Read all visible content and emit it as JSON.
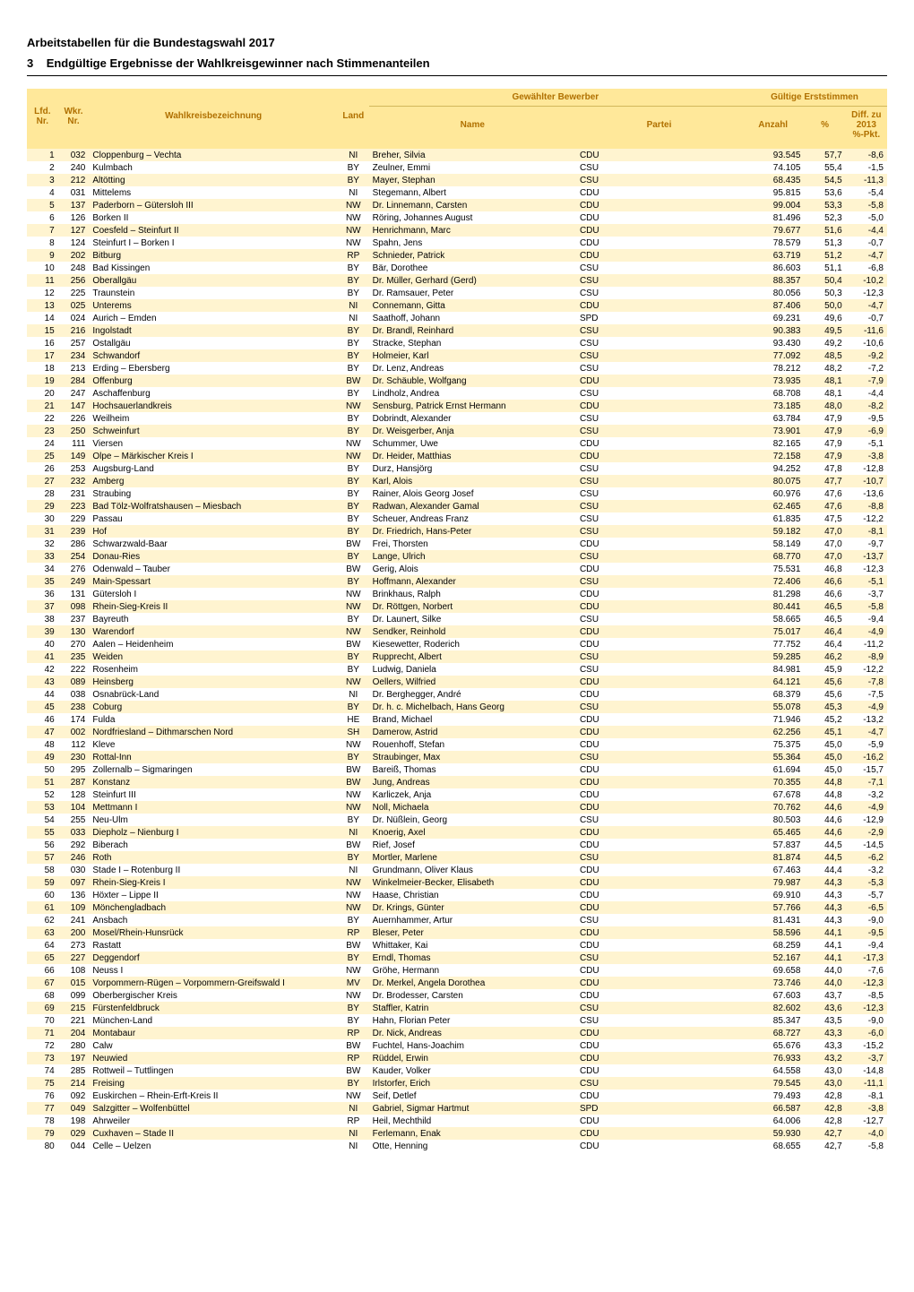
{
  "header": {
    "title1": "Arbeitstabellen für die Bundestagswahl 2017",
    "title2_num": "3",
    "title2_txt": "Endgültige Ergebnisse der Wahlkreisgewinner nach Stimmenanteilen"
  },
  "columns": {
    "lfd": "Lfd.\nNr.",
    "wkr": "Wkr.\nNr.",
    "bez": "Wahlkreisbezeichnung",
    "land": "Land",
    "gew": "Gewählter Bewerber",
    "name": "Name",
    "partei": "Partei",
    "erst": "Gültige Erststimmen",
    "anzahl": "Anzahl",
    "pct": "%",
    "diff": "Diff. zu\n2013\n%-Pkt."
  },
  "palette": {
    "header_bg": "#ffe89a",
    "header_fg": "#b07000",
    "row_odd": "#fff4d0",
    "row_even": "#ffffff"
  },
  "rows": [
    {
      "lfd": 1,
      "wkr": "032",
      "bez": "Cloppenburg – Vechta",
      "land": "NI",
      "name": "Breher, Silvia",
      "partei": "CDU",
      "anz": "93.545",
      "pct": "57,7",
      "diff": "-8,6"
    },
    {
      "lfd": 2,
      "wkr": "240",
      "bez": "Kulmbach",
      "land": "BY",
      "name": "Zeulner, Emmi",
      "partei": "CSU",
      "anz": "74.105",
      "pct": "55,4",
      "diff": "-1,5"
    },
    {
      "lfd": 3,
      "wkr": "212",
      "bez": "Altötting",
      "land": "BY",
      "name": "Mayer, Stephan",
      "partei": "CSU",
      "anz": "68.435",
      "pct": "54,5",
      "diff": "-11,3"
    },
    {
      "lfd": 4,
      "wkr": "031",
      "bez": "Mittelems",
      "land": "NI",
      "name": "Stegemann, Albert",
      "partei": "CDU",
      "anz": "95.815",
      "pct": "53,6",
      "diff": "-5,4"
    },
    {
      "lfd": 5,
      "wkr": "137",
      "bez": "Paderborn – Gütersloh III",
      "land": "NW",
      "name": "Dr. Linnemann, Carsten",
      "partei": "CDU",
      "anz": "99.004",
      "pct": "53,3",
      "diff": "-5,8"
    },
    {
      "lfd": 6,
      "wkr": "126",
      "bez": "Borken II",
      "land": "NW",
      "name": "Röring, Johannes August",
      "partei": "CDU",
      "anz": "81.496",
      "pct": "52,3",
      "diff": "-5,0"
    },
    {
      "lfd": 7,
      "wkr": "127",
      "bez": "Coesfeld – Steinfurt II",
      "land": "NW",
      "name": "Henrichmann, Marc",
      "partei": "CDU",
      "anz": "79.677",
      "pct": "51,6",
      "diff": "-4,4"
    },
    {
      "lfd": 8,
      "wkr": "124",
      "bez": "Steinfurt I – Borken I",
      "land": "NW",
      "name": "Spahn, Jens",
      "partei": "CDU",
      "anz": "78.579",
      "pct": "51,3",
      "diff": "-0,7"
    },
    {
      "lfd": 9,
      "wkr": "202",
      "bez": "Bitburg",
      "land": "RP",
      "name": "Schnieder, Patrick",
      "partei": "CDU",
      "anz": "63.719",
      "pct": "51,2",
      "diff": "-4,7"
    },
    {
      "lfd": 10,
      "wkr": "248",
      "bez": "Bad Kissingen",
      "land": "BY",
      "name": "Bär, Dorothee",
      "partei": "CSU",
      "anz": "86.603",
      "pct": "51,1",
      "diff": "-6,8"
    },
    {
      "lfd": 11,
      "wkr": "256",
      "bez": "Oberallgäu",
      "land": "BY",
      "name": "Dr. Müller, Gerhard (Gerd)",
      "partei": "CSU",
      "anz": "88.357",
      "pct": "50,4",
      "diff": "-10,2"
    },
    {
      "lfd": 12,
      "wkr": "225",
      "bez": "Traunstein",
      "land": "BY",
      "name": "Dr. Ramsauer, Peter",
      "partei": "CSU",
      "anz": "80.056",
      "pct": "50,3",
      "diff": "-12,3"
    },
    {
      "lfd": 13,
      "wkr": "025",
      "bez": "Unterems",
      "land": "NI",
      "name": "Connemann, Gitta",
      "partei": "CDU",
      "anz": "87.406",
      "pct": "50,0",
      "diff": "-4,7"
    },
    {
      "lfd": 14,
      "wkr": "024",
      "bez": "Aurich – Emden",
      "land": "NI",
      "name": "Saathoff, Johann",
      "partei": "SPD",
      "anz": "69.231",
      "pct": "49,6",
      "diff": "-0,7"
    },
    {
      "lfd": 15,
      "wkr": "216",
      "bez": "Ingolstadt",
      "land": "BY",
      "name": "Dr. Brandl, Reinhard",
      "partei": "CSU",
      "anz": "90.383",
      "pct": "49,5",
      "diff": "-11,6"
    },
    {
      "lfd": 16,
      "wkr": "257",
      "bez": "Ostallgäu",
      "land": "BY",
      "name": "Stracke, Stephan",
      "partei": "CSU",
      "anz": "93.430",
      "pct": "49,2",
      "diff": "-10,6"
    },
    {
      "lfd": 17,
      "wkr": "234",
      "bez": "Schwandorf",
      "land": "BY",
      "name": "Holmeier, Karl",
      "partei": "CSU",
      "anz": "77.092",
      "pct": "48,5",
      "diff": "-9,2"
    },
    {
      "lfd": 18,
      "wkr": "213",
      "bez": "Erding – Ebersberg",
      "land": "BY",
      "name": "Dr. Lenz, Andreas",
      "partei": "CSU",
      "anz": "78.212",
      "pct": "48,2",
      "diff": "-7,2"
    },
    {
      "lfd": 19,
      "wkr": "284",
      "bez": "Offenburg",
      "land": "BW",
      "name": "Dr. Schäuble, Wolfgang",
      "partei": "CDU",
      "anz": "73.935",
      "pct": "48,1",
      "diff": "-7,9"
    },
    {
      "lfd": 20,
      "wkr": "247",
      "bez": "Aschaffenburg",
      "land": "BY",
      "name": "Lindholz, Andrea",
      "partei": "CSU",
      "anz": "68.708",
      "pct": "48,1",
      "diff": "-4,4"
    },
    {
      "lfd": 21,
      "wkr": "147",
      "bez": "Hochsauerlandkreis",
      "land": "NW",
      "name": "Sensburg, Patrick Ernst Hermann",
      "partei": "CDU",
      "anz": "73.185",
      "pct": "48,0",
      "diff": "-8,2"
    },
    {
      "lfd": 22,
      "wkr": "226",
      "bez": "Weilheim",
      "land": "BY",
      "name": "Dobrindt, Alexander",
      "partei": "CSU",
      "anz": "63.784",
      "pct": "47,9",
      "diff": "-9,5"
    },
    {
      "lfd": 23,
      "wkr": "250",
      "bez": "Schweinfurt",
      "land": "BY",
      "name": "Dr. Weisgerber, Anja",
      "partei": "CSU",
      "anz": "73.901",
      "pct": "47,9",
      "diff": "-6,9"
    },
    {
      "lfd": 24,
      "wkr": "111",
      "bez": "Viersen",
      "land": "NW",
      "name": "Schummer, Uwe",
      "partei": "CDU",
      "anz": "82.165",
      "pct": "47,9",
      "diff": "-5,1"
    },
    {
      "lfd": 25,
      "wkr": "149",
      "bez": "Olpe – Märkischer Kreis I",
      "land": "NW",
      "name": "Dr. Heider, Matthias",
      "partei": "CDU",
      "anz": "72.158",
      "pct": "47,9",
      "diff": "-3,8"
    },
    {
      "lfd": 26,
      "wkr": "253",
      "bez": "Augsburg-Land",
      "land": "BY",
      "name": "Durz, Hansjörg",
      "partei": "CSU",
      "anz": "94.252",
      "pct": "47,8",
      "diff": "-12,8"
    },
    {
      "lfd": 27,
      "wkr": "232",
      "bez": "Amberg",
      "land": "BY",
      "name": "Karl, Alois",
      "partei": "CSU",
      "anz": "80.075",
      "pct": "47,7",
      "diff": "-10,7"
    },
    {
      "lfd": 28,
      "wkr": "231",
      "bez": "Straubing",
      "land": "BY",
      "name": "Rainer, Alois Georg Josef",
      "partei": "CSU",
      "anz": "60.976",
      "pct": "47,6",
      "diff": "-13,6"
    },
    {
      "lfd": 29,
      "wkr": "223",
      "bez": "Bad Tölz-Wolfratshausen – Miesbach",
      "land": "BY",
      "name": "Radwan, Alexander Gamal",
      "partei": "CSU",
      "anz": "62.465",
      "pct": "47,6",
      "diff": "-8,8"
    },
    {
      "lfd": 30,
      "wkr": "229",
      "bez": "Passau",
      "land": "BY",
      "name": "Scheuer, Andreas Franz",
      "partei": "CSU",
      "anz": "61.835",
      "pct": "47,5",
      "diff": "-12,2"
    },
    {
      "lfd": 31,
      "wkr": "239",
      "bez": "Hof",
      "land": "BY",
      "name": "Dr. Friedrich, Hans-Peter",
      "partei": "CSU",
      "anz": "59.182",
      "pct": "47,0",
      "diff": "-8,1"
    },
    {
      "lfd": 32,
      "wkr": "286",
      "bez": "Schwarzwald-Baar",
      "land": "BW",
      "name": "Frei, Thorsten",
      "partei": "CDU",
      "anz": "58.149",
      "pct": "47,0",
      "diff": "-9,7"
    },
    {
      "lfd": 33,
      "wkr": "254",
      "bez": "Donau-Ries",
      "land": "BY",
      "name": "Lange, Ulrich",
      "partei": "CSU",
      "anz": "68.770",
      "pct": "47,0",
      "diff": "-13,7"
    },
    {
      "lfd": 34,
      "wkr": "276",
      "bez": "Odenwald – Tauber",
      "land": "BW",
      "name": "Gerig, Alois",
      "partei": "CDU",
      "anz": "75.531",
      "pct": "46,8",
      "diff": "-12,3"
    },
    {
      "lfd": 35,
      "wkr": "249",
      "bez": "Main-Spessart",
      "land": "BY",
      "name": "Hoffmann, Alexander",
      "partei": "CSU",
      "anz": "72.406",
      "pct": "46,6",
      "diff": "-5,1"
    },
    {
      "lfd": 36,
      "wkr": "131",
      "bez": "Gütersloh I",
      "land": "NW",
      "name": "Brinkhaus, Ralph",
      "partei": "CDU",
      "anz": "81.298",
      "pct": "46,6",
      "diff": "-3,7"
    },
    {
      "lfd": 37,
      "wkr": "098",
      "bez": "Rhein-Sieg-Kreis II",
      "land": "NW",
      "name": "Dr. Röttgen, Norbert",
      "partei": "CDU",
      "anz": "80.441",
      "pct": "46,5",
      "diff": "-5,8"
    },
    {
      "lfd": 38,
      "wkr": "237",
      "bez": "Bayreuth",
      "land": "BY",
      "name": "Dr. Launert, Silke",
      "partei": "CSU",
      "anz": "58.665",
      "pct": "46,5",
      "diff": "-9,4"
    },
    {
      "lfd": 39,
      "wkr": "130",
      "bez": "Warendorf",
      "land": "NW",
      "name": "Sendker, Reinhold",
      "partei": "CDU",
      "anz": "75.017",
      "pct": "46,4",
      "diff": "-4,9"
    },
    {
      "lfd": 40,
      "wkr": "270",
      "bez": "Aalen – Heidenheim",
      "land": "BW",
      "name": "Kiesewetter, Roderich",
      "partei": "CDU",
      "anz": "77.752",
      "pct": "46,4",
      "diff": "-11,2"
    },
    {
      "lfd": 41,
      "wkr": "235",
      "bez": "Weiden",
      "land": "BY",
      "name": "Rupprecht, Albert",
      "partei": "CSU",
      "anz": "59.285",
      "pct": "46,2",
      "diff": "-8,9"
    },
    {
      "lfd": 42,
      "wkr": "222",
      "bez": "Rosenheim",
      "land": "BY",
      "name": "Ludwig, Daniela",
      "partei": "CSU",
      "anz": "84.981",
      "pct": "45,9",
      "diff": "-12,2"
    },
    {
      "lfd": 43,
      "wkr": "089",
      "bez": "Heinsberg",
      "land": "NW",
      "name": "Oellers, Wilfried",
      "partei": "CDU",
      "anz": "64.121",
      "pct": "45,6",
      "diff": "-7,8"
    },
    {
      "lfd": 44,
      "wkr": "038",
      "bez": "Osnabrück-Land",
      "land": "NI",
      "name": "Dr. Berghegger, André",
      "partei": "CDU",
      "anz": "68.379",
      "pct": "45,6",
      "diff": "-7,5"
    },
    {
      "lfd": 45,
      "wkr": "238",
      "bez": "Coburg",
      "land": "BY",
      "name": "Dr. h. c. Michelbach, Hans Georg",
      "partei": "CSU",
      "anz": "55.078",
      "pct": "45,3",
      "diff": "-4,9"
    },
    {
      "lfd": 46,
      "wkr": "174",
      "bez": "Fulda",
      "land": "HE",
      "name": "Brand, Michael",
      "partei": "CDU",
      "anz": "71.946",
      "pct": "45,2",
      "diff": "-13,2"
    },
    {
      "lfd": 47,
      "wkr": "002",
      "bez": "Nordfriesland – Dithmarschen Nord",
      "land": "SH",
      "name": "Damerow, Astrid",
      "partei": "CDU",
      "anz": "62.256",
      "pct": "45,1",
      "diff": "-4,7"
    },
    {
      "lfd": 48,
      "wkr": "112",
      "bez": "Kleve",
      "land": "NW",
      "name": "Rouenhoff, Stefan",
      "partei": "CDU",
      "anz": "75.375",
      "pct": "45,0",
      "diff": "-5,9"
    },
    {
      "lfd": 49,
      "wkr": "230",
      "bez": "Rottal-Inn",
      "land": "BY",
      "name": "Straubinger, Max",
      "partei": "CSU",
      "anz": "55.364",
      "pct": "45,0",
      "diff": "-16,2"
    },
    {
      "lfd": 50,
      "wkr": "295",
      "bez": "Zollernalb – Sigmaringen",
      "land": "BW",
      "name": "Bareiß, Thomas",
      "partei": "CDU",
      "anz": "61.694",
      "pct": "45,0",
      "diff": "-15,7"
    },
    {
      "lfd": 51,
      "wkr": "287",
      "bez": "Konstanz",
      "land": "BW",
      "name": "Jung, Andreas",
      "partei": "CDU",
      "anz": "70.355",
      "pct": "44,8",
      "diff": "-7,1"
    },
    {
      "lfd": 52,
      "wkr": "128",
      "bez": "Steinfurt III",
      "land": "NW",
      "name": "Karliczek, Anja",
      "partei": "CDU",
      "anz": "67.678",
      "pct": "44,8",
      "diff": "-3,2"
    },
    {
      "lfd": 53,
      "wkr": "104",
      "bez": "Mettmann I",
      "land": "NW",
      "name": "Noll, Michaela",
      "partei": "CDU",
      "anz": "70.762",
      "pct": "44,6",
      "diff": "-4,9"
    },
    {
      "lfd": 54,
      "wkr": "255",
      "bez": "Neu-Ulm",
      "land": "BY",
      "name": "Dr. Nüßlein, Georg",
      "partei": "CSU",
      "anz": "80.503",
      "pct": "44,6",
      "diff": "-12,9"
    },
    {
      "lfd": 55,
      "wkr": "033",
      "bez": "Diepholz – Nienburg I",
      "land": "NI",
      "name": "Knoerig, Axel",
      "partei": "CDU",
      "anz": "65.465",
      "pct": "44,6",
      "diff": "-2,9"
    },
    {
      "lfd": 56,
      "wkr": "292",
      "bez": "Biberach",
      "land": "BW",
      "name": "Rief, Josef",
      "partei": "CDU",
      "anz": "57.837",
      "pct": "44,5",
      "diff": "-14,5"
    },
    {
      "lfd": 57,
      "wkr": "246",
      "bez": "Roth",
      "land": "BY",
      "name": "Mortler, Marlene",
      "partei": "CSU",
      "anz": "81.874",
      "pct": "44,5",
      "diff": "-6,2"
    },
    {
      "lfd": 58,
      "wkr": "030",
      "bez": "Stade I – Rotenburg II",
      "land": "NI",
      "name": "Grundmann, Oliver Klaus",
      "partei": "CDU",
      "anz": "67.463",
      "pct": "44,4",
      "diff": "-3,2"
    },
    {
      "lfd": 59,
      "wkr": "097",
      "bez": "Rhein-Sieg-Kreis I",
      "land": "NW",
      "name": "Winkelmeier-Becker, Elisabeth",
      "partei": "CDU",
      "anz": "79.987",
      "pct": "44,3",
      "diff": "-5,3"
    },
    {
      "lfd": 60,
      "wkr": "136",
      "bez": "Höxter – Lippe II",
      "land": "NW",
      "name": "Haase, Christian",
      "partei": "CDU",
      "anz": "69.910",
      "pct": "44,3",
      "diff": "-5,7"
    },
    {
      "lfd": 61,
      "wkr": "109",
      "bez": "Mönchengladbach",
      "land": "NW",
      "name": "Dr. Krings, Günter",
      "partei": "CDU",
      "anz": "57.766",
      "pct": "44,3",
      "diff": "-6,5"
    },
    {
      "lfd": 62,
      "wkr": "241",
      "bez": "Ansbach",
      "land": "BY",
      "name": "Auernhammer, Artur",
      "partei": "CSU",
      "anz": "81.431",
      "pct": "44,3",
      "diff": "-9,0"
    },
    {
      "lfd": 63,
      "wkr": "200",
      "bez": "Mosel/Rhein-Hunsrück",
      "land": "RP",
      "name": "Bleser, Peter",
      "partei": "CDU",
      "anz": "58.596",
      "pct": "44,1",
      "diff": "-9,5"
    },
    {
      "lfd": 64,
      "wkr": "273",
      "bez": "Rastatt",
      "land": "BW",
      "name": "Whittaker, Kai",
      "partei": "CDU",
      "anz": "68.259",
      "pct": "44,1",
      "diff": "-9,4"
    },
    {
      "lfd": 65,
      "wkr": "227",
      "bez": "Deggendorf",
      "land": "BY",
      "name": "Erndl, Thomas",
      "partei": "CSU",
      "anz": "52.167",
      "pct": "44,1",
      "diff": "-17,3"
    },
    {
      "lfd": 66,
      "wkr": "108",
      "bez": "Neuss I",
      "land": "NW",
      "name": "Gröhe, Hermann",
      "partei": "CDU",
      "anz": "69.658",
      "pct": "44,0",
      "diff": "-7,6"
    },
    {
      "lfd": 67,
      "wkr": "015",
      "bez": "Vorpommern-Rügen – Vorpommern-Greifswald I",
      "land": "MV",
      "name": "Dr. Merkel, Angela Dorothea",
      "partei": "CDU",
      "anz": "73.746",
      "pct": "44,0",
      "diff": "-12,3"
    },
    {
      "lfd": 68,
      "wkr": "099",
      "bez": "Oberbergischer Kreis",
      "land": "NW",
      "name": "Dr. Brodesser, Carsten",
      "partei": "CDU",
      "anz": "67.603",
      "pct": "43,7",
      "diff": "-8,5"
    },
    {
      "lfd": 69,
      "wkr": "215",
      "bez": "Fürstenfeldbruck",
      "land": "BY",
      "name": "Staffler, Katrin",
      "partei": "CSU",
      "anz": "82.602",
      "pct": "43,6",
      "diff": "-12,3"
    },
    {
      "lfd": 70,
      "wkr": "221",
      "bez": "München-Land",
      "land": "BY",
      "name": "Hahn, Florian Peter",
      "partei": "CSU",
      "anz": "85.347",
      "pct": "43,5",
      "diff": "-9,0"
    },
    {
      "lfd": 71,
      "wkr": "204",
      "bez": "Montabaur",
      "land": "RP",
      "name": "Dr. Nick, Andreas",
      "partei": "CDU",
      "anz": "68.727",
      "pct": "43,3",
      "diff": "-6,0"
    },
    {
      "lfd": 72,
      "wkr": "280",
      "bez": "Calw",
      "land": "BW",
      "name": "Fuchtel, Hans-Joachim",
      "partei": "CDU",
      "anz": "65.676",
      "pct": "43,3",
      "diff": "-15,2"
    },
    {
      "lfd": 73,
      "wkr": "197",
      "bez": "Neuwied",
      "land": "RP",
      "name": "Rüddel, Erwin",
      "partei": "CDU",
      "anz": "76.933",
      "pct": "43,2",
      "diff": "-3,7"
    },
    {
      "lfd": 74,
      "wkr": "285",
      "bez": "Rottweil – Tuttlingen",
      "land": "BW",
      "name": "Kauder, Volker",
      "partei": "CDU",
      "anz": "64.558",
      "pct": "43,0",
      "diff": "-14,8"
    },
    {
      "lfd": 75,
      "wkr": "214",
      "bez": "Freising",
      "land": "BY",
      "name": "Irlstorfer, Erich",
      "partei": "CSU",
      "anz": "79.545",
      "pct": "43,0",
      "diff": "-11,1"
    },
    {
      "lfd": 76,
      "wkr": "092",
      "bez": "Euskirchen – Rhein-Erft-Kreis II",
      "land": "NW",
      "name": "Seif, Detlef",
      "partei": "CDU",
      "anz": "79.493",
      "pct": "42,8",
      "diff": "-8,1"
    },
    {
      "lfd": 77,
      "wkr": "049",
      "bez": "Salzgitter – Wolfenbüttel",
      "land": "NI",
      "name": "Gabriel, Sigmar Hartmut",
      "partei": "SPD",
      "anz": "66.587",
      "pct": "42,8",
      "diff": "-3,8"
    },
    {
      "lfd": 78,
      "wkr": "198",
      "bez": "Ahrweiler",
      "land": "RP",
      "name": "Heil, Mechthild",
      "partei": "CDU",
      "anz": "64.006",
      "pct": "42,8",
      "diff": "-12,7"
    },
    {
      "lfd": 79,
      "wkr": "029",
      "bez": "Cuxhaven – Stade II",
      "land": "NI",
      "name": "Ferlemann, Enak",
      "partei": "CDU",
      "anz": "59.930",
      "pct": "42,7",
      "diff": "-4,0"
    },
    {
      "lfd": 80,
      "wkr": "044",
      "bez": "Celle – Uelzen",
      "land": "NI",
      "name": "Otte, Henning",
      "partei": "CDU",
      "anz": "68.655",
      "pct": "42,7",
      "diff": "-5,8"
    }
  ]
}
